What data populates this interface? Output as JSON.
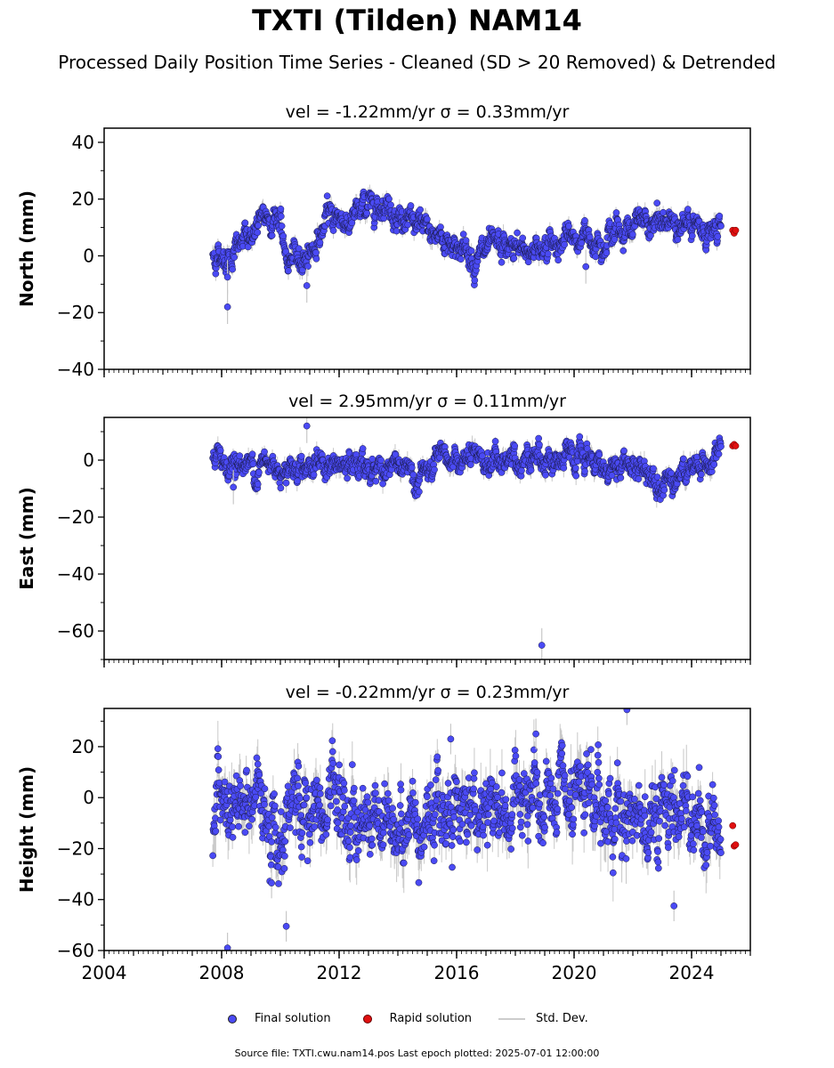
{
  "title": "TXTI (Tilden) NAM14",
  "subtitle": "Processed Daily Position Time Series - Cleaned (SD > 20 Removed) & Detrended",
  "source_note": "Source file: TXTI.cwu.nam14.pos  Last epoch plotted: 2025-07-01 12:00:00",
  "legend": {
    "final": "Final solution",
    "rapid": "Rapid solution",
    "std": "Std. Dev."
  },
  "colors": {
    "final": "#4a4af4",
    "rapid": "#e01010",
    "std": "#c8c8c8"
  },
  "chart_data": [
    {
      "type": "scatter",
      "title": "vel = -1.22mm/yr   σ = 0.33mm/yr",
      "vel_label": "vel = -1.22mm/yr",
      "sigma_label": "σ = 0.33mm/yr",
      "ylabel": "North (mm)",
      "xlim": [
        2004,
        2026
      ],
      "ylim": [
        -40,
        45
      ],
      "yticks": [
        -40,
        -20,
        0,
        20,
        40
      ],
      "xticks": [
        2004,
        2008,
        2012,
        2016,
        2020,
        2024
      ],
      "final_trend": [
        [
          2007.7,
          0
        ],
        [
          2008.3,
          0
        ],
        [
          2009.0,
          8
        ],
        [
          2009.6,
          14
        ],
        [
          2010.0,
          14
        ],
        [
          2010.15,
          -2
        ],
        [
          2010.6,
          -2
        ],
        [
          2011.2,
          4
        ],
        [
          2011.7,
          15
        ],
        [
          2012.4,
          12
        ],
        [
          2013.0,
          19
        ],
        [
          2013.6,
          19
        ],
        [
          2014.2,
          12
        ],
        [
          2015.2,
          8
        ],
        [
          2016.0,
          4
        ],
        [
          2016.6,
          -1
        ],
        [
          2017.3,
          2
        ],
        [
          2018.3,
          2
        ],
        [
          2019.2,
          4
        ],
        [
          2020.0,
          6
        ],
        [
          2021.0,
          7
        ],
        [
          2022.0,
          11
        ],
        [
          2023.0,
          11
        ],
        [
          2023.5,
          13
        ],
        [
          2024.0,
          9
        ],
        [
          2025.0,
          8
        ]
      ],
      "final_spread": 3,
      "outliers": [
        [
          2008.2,
          -7.5
        ],
        [
          2008.2,
          -18
        ],
        [
          2010.9,
          -10.5
        ],
        [
          2020.4,
          -3.8
        ]
      ],
      "rapid": [
        [
          2025.4,
          9
        ],
        [
          2025.45,
          8
        ],
        [
          2025.5,
          9
        ]
      ]
    },
    {
      "type": "scatter",
      "title": "vel = 2.95mm/yr   σ = 0.11mm/yr",
      "vel_label": "vel = 2.95mm/yr",
      "sigma_label": "σ = 0.11mm/yr",
      "ylabel": "East (mm)",
      "xlim": [
        2004,
        2026
      ],
      "ylim": [
        -70,
        15
      ],
      "yticks": [
        -60,
        -40,
        -20,
        0
      ],
      "xticks": [
        2004,
        2008,
        2012,
        2016,
        2020,
        2024
      ],
      "final_trend": [
        [
          2007.7,
          0
        ],
        [
          2009.0,
          -2
        ],
        [
          2010.0,
          -2
        ],
        [
          2011.0,
          -1
        ],
        [
          2012.0,
          -3
        ],
        [
          2013.0,
          -2
        ],
        [
          2014.0,
          -3
        ],
        [
          2014.6,
          -7
        ],
        [
          2015.2,
          -3
        ],
        [
          2016.0,
          0
        ],
        [
          2017.0,
          -1
        ],
        [
          2018.0,
          0
        ],
        [
          2018.8,
          3
        ],
        [
          2019.5,
          -1
        ],
        [
          2020.0,
          0
        ],
        [
          2021.0,
          -2
        ],
        [
          2022.0,
          -2
        ],
        [
          2023.0,
          -6
        ],
        [
          2024.0,
          -4
        ],
        [
          2024.5,
          -2
        ],
        [
          2025.0,
          3
        ]
      ],
      "final_spread": 3,
      "outliers": [
        [
          2010.9,
          12
        ],
        [
          2008.4,
          -9.5
        ],
        [
          2018.9,
          -65
        ]
      ],
      "rapid": [
        [
          2025.4,
          5
        ],
        [
          2025.45,
          5.5
        ],
        [
          2025.5,
          5
        ]
      ]
    },
    {
      "type": "scatter",
      "title": "vel = -0.22mm/yr   σ = 0.23mm/yr",
      "vel_label": "vel = -0.22mm/yr",
      "sigma_label": "σ = 0.23mm/yr",
      "ylabel": "Height (mm)",
      "xlim": [
        2004,
        2026
      ],
      "ylim": [
        -60,
        35
      ],
      "yticks": [
        -60,
        -40,
        -20,
        0,
        20
      ],
      "xticks": [
        2004,
        2008,
        2012,
        2016,
        2020,
        2024
      ],
      "final_trend": [
        [
          2007.7,
          -5
        ],
        [
          2009.0,
          -4
        ],
        [
          2010.0,
          -8
        ],
        [
          2011.0,
          -5
        ],
        [
          2012.0,
          -8
        ],
        [
          2013.0,
          -8
        ],
        [
          2014.0,
          -10
        ],
        [
          2015.0,
          -6
        ],
        [
          2016.0,
          -2
        ],
        [
          2017.0,
          -4
        ],
        [
          2018.0,
          -6
        ],
        [
          2019.0,
          -4
        ],
        [
          2020.0,
          -5
        ],
        [
          2021.0,
          -3
        ],
        [
          2022.0,
          -6
        ],
        [
          2023.0,
          -4
        ],
        [
          2024.0,
          -2
        ],
        [
          2024.6,
          -10
        ],
        [
          2025.0,
          -20
        ]
      ],
      "final_spread": 10,
      "outliers": [
        [
          2008.2,
          -59
        ],
        [
          2010.2,
          -50.5
        ],
        [
          2009.7,
          -33.5
        ],
        [
          2021.8,
          34.5
        ],
        [
          2023.4,
          -42.5
        ],
        [
          2018.7,
          25
        ],
        [
          2015.8,
          23
        ]
      ],
      "rapid": [
        [
          2025.4,
          -11
        ],
        [
          2025.45,
          -19
        ],
        [
          2025.5,
          -18.5
        ]
      ]
    }
  ]
}
